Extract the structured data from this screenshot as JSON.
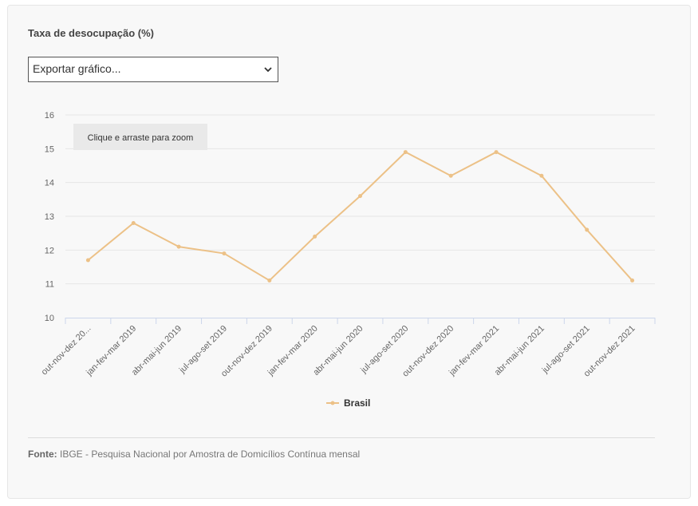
{
  "title": "Taxa de desocupação (%)",
  "export": {
    "selected": "Exportar gráfico..."
  },
  "zoom_hint": "Clique e arraste para zoom",
  "source": {
    "label": "Fonte:",
    "text": " IBGE - Pesquisa Nacional por Amostra de Domicílios Contínua mensal"
  },
  "colors": {
    "line": "#ecc187",
    "grid": "#e6e6e6",
    "axis": "#ccd6eb",
    "tick_text": "#666666"
  },
  "chart_data": {
    "type": "line",
    "title": "Taxa de desocupação (%)",
    "xlabel": "",
    "ylabel": "",
    "ylim": [
      10,
      16
    ],
    "yticks": [
      10,
      11,
      12,
      13,
      14,
      15,
      16
    ],
    "grid": true,
    "legend_position": "bottom-center",
    "categories": [
      "out-nov-dez 20...",
      "jan-fev-mar 2019",
      "abr-mai-jun 2019",
      "jul-ago-set 2019",
      "out-nov-dez 2019",
      "jan-fev-mar 2020",
      "abr-mai-jun 2020",
      "jul-ago-set 2020",
      "out-nov-dez 2020",
      "jan-fev-mar 2021",
      "abr-mai-jun 2021",
      "jul-ago-set 2021",
      "out-nov-dez 2021"
    ],
    "series": [
      {
        "name": "Brasil",
        "color": "#ecc187",
        "values": [
          11.7,
          12.8,
          12.1,
          11.9,
          11.1,
          12.4,
          13.6,
          14.9,
          14.2,
          14.9,
          14.2,
          12.6,
          11.1
        ]
      }
    ]
  }
}
